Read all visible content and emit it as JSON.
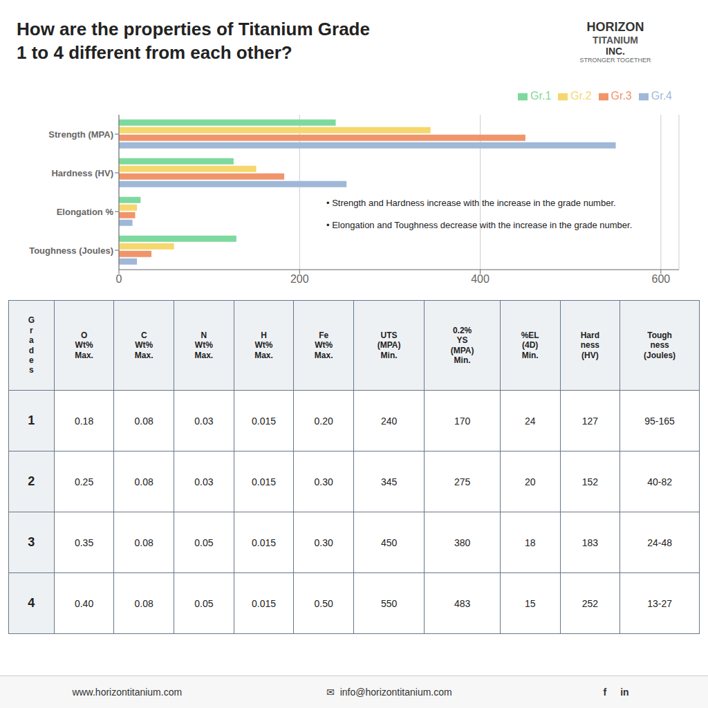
{
  "chart_data": [
    {
      "type": "bar",
      "title": "How are the properties of Titanium Grade\n1 to 4 different from each other?",
      "orientation": "horizontal",
      "categories": [
        "Strength (MPA)",
        "Hardness (HV)",
        "Elongation %",
        "Toughness (Joules)"
      ],
      "series": [
        {
          "name": "Gr.1",
          "color": "#7ed99e",
          "values": [
            240,
            127,
            24,
            130
          ]
        },
        {
          "name": "Gr.2",
          "color": "#f5d76e",
          "values": [
            345,
            152,
            20,
            61
          ]
        },
        {
          "name": "Gr.3",
          "color": "#f0956a",
          "values": [
            450,
            183,
            18,
            36
          ]
        },
        {
          "name": "Gr.4",
          "color": "#9fb8d8",
          "values": [
            550,
            252,
            15,
            20
          ]
        }
      ],
      "xlim": [
        0,
        620
      ],
      "xticks": [
        0,
        200,
        400,
        600
      ],
      "grid": true,
      "legend": "top",
      "annotations": [
        "HORIZON",
        "TITANIUM",
        "INC.",
        "STRONGER TOGETHER",
        "• Strength and Hardness increase with the increase in the grade number.",
        "• Elongation and Toughness decrease with the increase in the grade number.",
        "www.horizontitanium.com",
        "✉",
        "info@horizontitanium.com",
        "f",
        "in"
      ]
    },
    {
      "type": "table",
      "columns": [
        "G\nr\na\nd\ne\ns",
        "O\nWt%\nMax.",
        "C\nWt%\nMax.",
        "N\nWt%\nMax.",
        "H\nWt%\nMax.",
        "Fe\nWt%\nMax.",
        "UTS\n(MPA)\nMin.",
        "0.2%\nYS\n(MPA)\nMin.",
        "%EL\n(4D)\nMin.",
        "Hard\nness\n(HV)",
        "Tough\nness\n(Joules)"
      ],
      "categories": [
        "1",
        "2",
        "3",
        "4"
      ],
      "cells": [
        [
          "0.18",
          "0.08",
          "0.03",
          "0.015",
          "0.20",
          "240",
          "170",
          "24",
          "127",
          "95-165"
        ],
        [
          "0.25",
          "0.08",
          "0.03",
          "0.015",
          "0.30",
          "345",
          "275",
          "20",
          "152",
          "40-82"
        ],
        [
          "0.35",
          "0.08",
          "0.05",
          "0.015",
          "0.30",
          "450",
          "380",
          "18",
          "183",
          "24-48"
        ],
        [
          "0.40",
          "0.08",
          "0.05",
          "0.015",
          "0.50",
          "550",
          "483",
          "15",
          "252",
          "13-27"
        ]
      ]
    }
  ]
}
